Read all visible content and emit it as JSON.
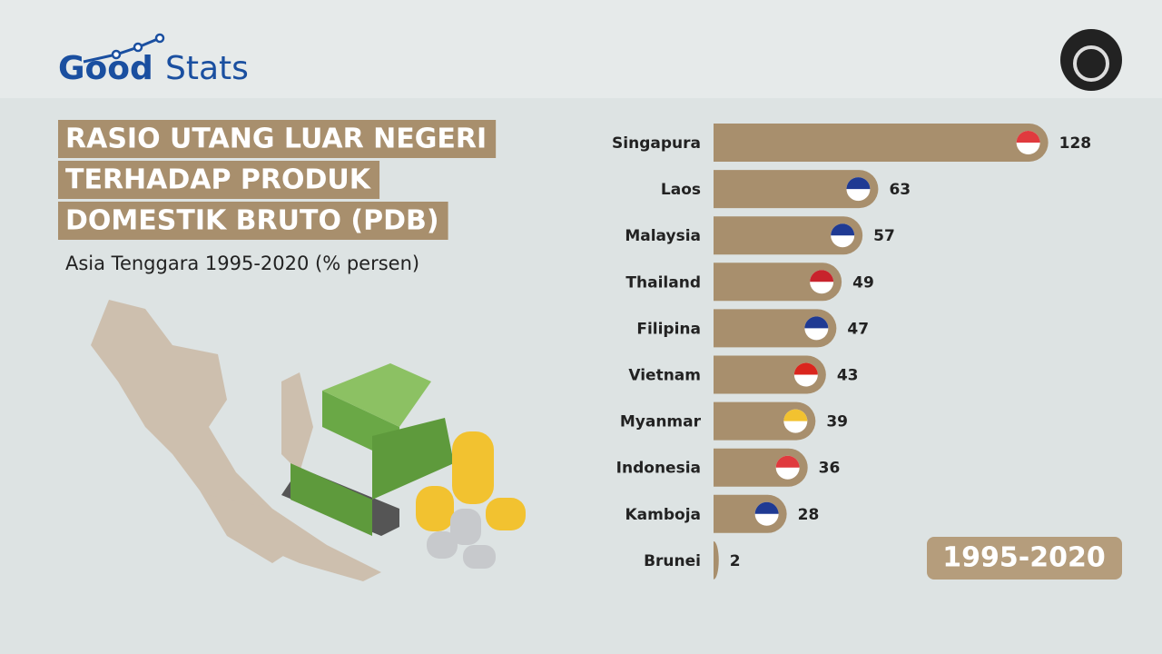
{
  "brand": {
    "part1": "Good",
    "part2": "Stats"
  },
  "chart_data": {
    "type": "bar",
    "orientation": "horizontal",
    "title_lines": [
      "RASIO UTANG LUAR NEGERI",
      "TERHADAP PRODUK",
      "DOMESTIK BRUTO (PDB)"
    ],
    "subtitle": "Asia Tenggara 1995-2020 (% persen)",
    "period": "1995-2020",
    "color": "#a88f6d",
    "categories": [
      "Singapura",
      "Laos",
      "Malaysia",
      "Thailand",
      "Filipina",
      "Vietnam",
      "Myanmar",
      "Indonesia",
      "Kamboja",
      "Brunei"
    ],
    "values": [
      128,
      63,
      57,
      49,
      47,
      43,
      39,
      36,
      28,
      2
    ]
  }
}
